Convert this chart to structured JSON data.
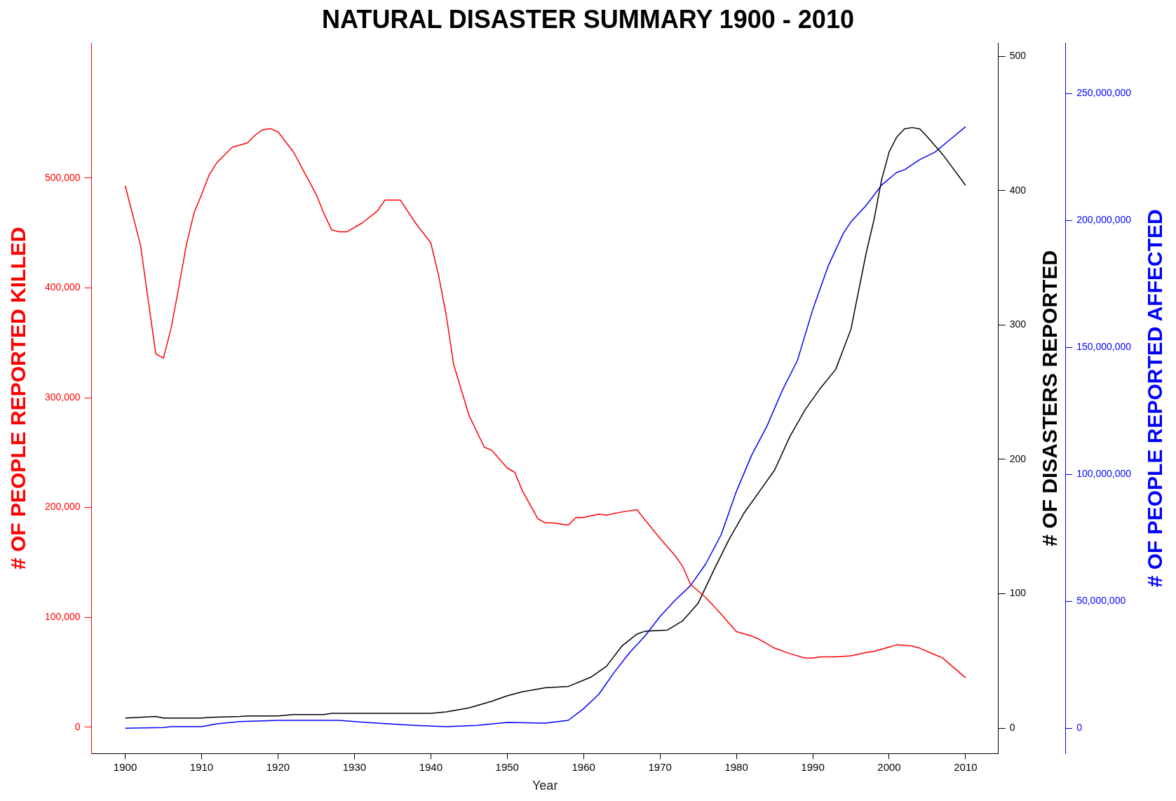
{
  "chart_data": {
    "type": "line",
    "title": "NATURAL DISASTER SUMMARY 1900 - 2010",
    "xlabel": "Year",
    "ylabel": "# OF PEOPLE REPORTED KILLED",
    "y2label": "# OF DISASTERS REPORTED",
    "y3label": "# OF PEOPLE REPORTED AFFECTED",
    "xlim": [
      1895.6,
      2014.3
    ],
    "xticks": [
      1900,
      1910,
      1920,
      1930,
      1940,
      1950,
      1960,
      1970,
      1980,
      1990,
      2000,
      2010
    ],
    "ylim": [
      -24000,
      623000
    ],
    "yticks": [
      {
        "value": 0,
        "label": "0"
      },
      {
        "value": 100000,
        "label": "100,000"
      },
      {
        "value": 200000,
        "label": "200,000"
      },
      {
        "value": 300000,
        "label": "300,000"
      },
      {
        "value": 400000,
        "label": "400,000"
      },
      {
        "value": 500000,
        "label": "500,000"
      }
    ],
    "y2lim": [
      -19,
      510
    ],
    "y2ticks": [
      0,
      100,
      200,
      300,
      400,
      500
    ],
    "y3lim": [
      -10000000,
      270000000
    ],
    "y3ticks": [
      {
        "value": 0,
        "label": "0"
      },
      {
        "value": 50000000,
        "label": "50,000,000"
      },
      {
        "value": 100000000,
        "label": "100,000,000"
      },
      {
        "value": 150000000,
        "label": "150,000,000"
      },
      {
        "value": 200000000,
        "label": "200,000,000"
      },
      {
        "value": 250000000,
        "label": "250,000,000"
      }
    ],
    "grid": false,
    "legend": false,
    "marker": "none",
    "line_style": "solid",
    "series": [
      {
        "color": "#ff0000",
        "x": [
          1900,
          1902,
          1904,
          1905,
          1906,
          1907,
          1908,
          1909,
          1910,
          1911,
          1912,
          1913,
          1914,
          1916,
          1917,
          1918,
          1919,
          1920,
          1922,
          1923,
          1925,
          1926,
          1927,
          1928,
          1929,
          1931,
          1933,
          1934,
          1936,
          1938,
          1940,
          1941,
          1942,
          1943,
          1945,
          1947,
          1948,
          1950,
          1951,
          1952,
          1954,
          1955,
          1956,
          1958,
          1959,
          1960,
          1962,
          1963,
          1965,
          1967,
          1968,
          1970,
          1972,
          1973,
          1974,
          1976,
          1978,
          1980,
          1982,
          1983,
          1985,
          1987,
          1989,
          1990,
          1991,
          1993,
          1995,
          1997,
          1998,
          2000,
          2001,
          2003,
          2004,
          2006,
          2007,
          2010
        ],
        "values": [
          493000,
          439000,
          340000,
          336000,
          363000,
          400000,
          439000,
          468000,
          485000,
          503000,
          514000,
          521000,
          528000,
          532000,
          539000,
          544000,
          545000,
          542000,
          524000,
          511000,
          485000,
          468000,
          453000,
          451000,
          451000,
          459000,
          470000,
          480000,
          480000,
          459000,
          441000,
          412000,
          376000,
          330000,
          284000,
          255000,
          252000,
          236000,
          232000,
          215000,
          190000,
          186000,
          186000,
          184000,
          191000,
          191000,
          194000,
          193000,
          196000,
          198000,
          189000,
          172000,
          156000,
          146000,
          130000,
          118000,
          103000,
          87000,
          83000,
          80000,
          72000,
          67000,
          63000,
          63000,
          64000,
          64000,
          65000,
          68000,
          69000,
          73000,
          75000,
          74000,
          72000,
          66000,
          63000,
          45000
        ]
      },
      {
        "color": "#000000",
        "axis": "y2",
        "x": [
          1900,
          1904,
          1905,
          1910,
          1911,
          1915,
          1916,
          1920,
          1922,
          1926,
          1927,
          1940,
          1942,
          1945,
          1948,
          1950,
          1952,
          1955,
          1958,
          1961,
          1963,
          1965,
          1967,
          1968,
          1971,
          1973,
          1975,
          1977,
          1979,
          1981,
          1983,
          1985,
          1987,
          1989,
          1991,
          1993,
          1995,
          1997,
          1998,
          1999,
          2000,
          2001,
          2002,
          2003,
          2004,
          2005,
          2007,
          2010
        ],
        "values": [
          7.5,
          8.6,
          7.5,
          7.5,
          8,
          8.6,
          9,
          9,
          10,
          10,
          11,
          11,
          12,
          15,
          20,
          24,
          27,
          30,
          31,
          38,
          46,
          61,
          70,
          72,
          73,
          80,
          93,
          117,
          140,
          160,
          176,
          192,
          217,
          237,
          253,
          267,
          297,
          354,
          378,
          408,
          429,
          440,
          446,
          447,
          446,
          440,
          427,
          404
        ]
      },
      {
        "color": "#0000ff",
        "axis": "y3",
        "x": [
          1900,
          1905,
          1906,
          1910,
          1912,
          1915,
          1918,
          1920,
          1928,
          1930,
          1933,
          1938,
          1942,
          1946,
          1950,
          1955,
          1958,
          1960,
          1962,
          1964,
          1966,
          1968,
          1970,
          1972,
          1974,
          1976,
          1978,
          1980,
          1982,
          1984,
          1986,
          1988,
          1990,
          1992,
          1994,
          1995,
          1997,
          1999,
          2001,
          2002,
          2004,
          2006,
          2008,
          2010
        ],
        "values": [
          0,
          300000,
          600000,
          600000,
          1700000,
          2600000,
          2900000,
          3100000,
          3100000,
          2600000,
          2000000,
          1100000,
          600000,
          1100000,
          2300000,
          2000000,
          3100000,
          7700000,
          13400000,
          22000000,
          29700000,
          36200000,
          44000000,
          50500000,
          56200000,
          64800000,
          76200000,
          93300000,
          107600000,
          119000000,
          133000000,
          145000000,
          165000000,
          182000000,
          195000000,
          199500000,
          206000000,
          214000000,
          219000000,
          220000000,
          224000000,
          227000000,
          232000000,
          237000000
        ]
      }
    ]
  }
}
